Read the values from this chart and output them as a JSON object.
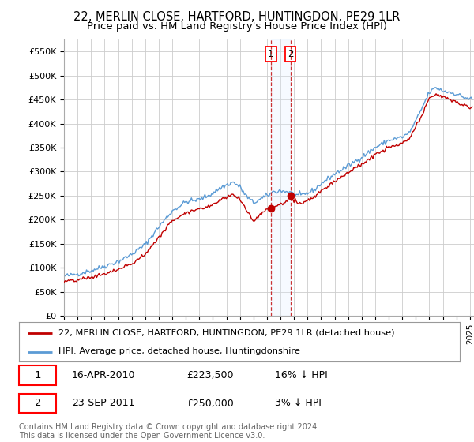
{
  "title": "22, MERLIN CLOSE, HARTFORD, HUNTINGDON, PE29 1LR",
  "subtitle": "Price paid vs. HM Land Registry's House Price Index (HPI)",
  "title_fontsize": 10.5,
  "subtitle_fontsize": 9.5,
  "ylabel_ticks": [
    "£0",
    "£50K",
    "£100K",
    "£150K",
    "£200K",
    "£250K",
    "£300K",
    "£350K",
    "£400K",
    "£450K",
    "£500K",
    "£550K"
  ],
  "ytick_values": [
    0,
    50000,
    100000,
    150000,
    200000,
    250000,
    300000,
    350000,
    400000,
    450000,
    500000,
    550000
  ],
  "ylim": [
    0,
    575000
  ],
  "xlim_start": 1995.0,
  "xlim_end": 2025.3,
  "hpi_color": "#5b9bd5",
  "price_color": "#c00000",
  "sale1_date": 2010.29,
  "sale1_price": 223500,
  "sale1_label": "1",
  "sale2_date": 2011.73,
  "sale2_price": 250000,
  "sale2_label": "2",
  "shade_color": "#ddeeff",
  "legend_line1": "22, MERLIN CLOSE, HARTFORD, HUNTINGDON, PE29 1LR (detached house)",
  "legend_line2": "HPI: Average price, detached house, Huntingdonshire",
  "info1_num": "1",
  "info1_date": "16-APR-2010",
  "info1_price": "£223,500",
  "info1_hpi": "16% ↓ HPI",
  "info2_num": "2",
  "info2_date": "23-SEP-2011",
  "info2_price": "£250,000",
  "info2_hpi": "3% ↓ HPI",
  "footnote": "Contains HM Land Registry data © Crown copyright and database right 2024.\nThis data is licensed under the Open Government Licence v3.0.",
  "grid_color": "#cccccc",
  "background_color": "#ffffff"
}
